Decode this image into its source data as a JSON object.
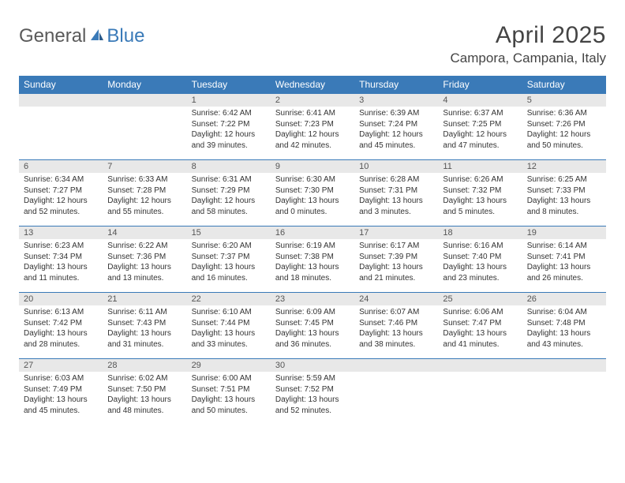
{
  "brand": {
    "part1": "General",
    "part2": "Blue"
  },
  "title": "April 2025",
  "location": "Campora, Campania, Italy",
  "colors": {
    "header_bg": "#3a7ab8",
    "header_text": "#ffffff",
    "daynum_bg": "#e8e8e8",
    "border": "#3a7ab8",
    "body_text": "#333333"
  },
  "weekdays": [
    "Sunday",
    "Monday",
    "Tuesday",
    "Wednesday",
    "Thursday",
    "Friday",
    "Saturday"
  ],
  "weeks": [
    [
      null,
      null,
      {
        "n": "1",
        "sunrise": "6:42 AM",
        "sunset": "7:22 PM",
        "daylight": "12 hours and 39 minutes."
      },
      {
        "n": "2",
        "sunrise": "6:41 AM",
        "sunset": "7:23 PM",
        "daylight": "12 hours and 42 minutes."
      },
      {
        "n": "3",
        "sunrise": "6:39 AM",
        "sunset": "7:24 PM",
        "daylight": "12 hours and 45 minutes."
      },
      {
        "n": "4",
        "sunrise": "6:37 AM",
        "sunset": "7:25 PM",
        "daylight": "12 hours and 47 minutes."
      },
      {
        "n": "5",
        "sunrise": "6:36 AM",
        "sunset": "7:26 PM",
        "daylight": "12 hours and 50 minutes."
      }
    ],
    [
      {
        "n": "6",
        "sunrise": "6:34 AM",
        "sunset": "7:27 PM",
        "daylight": "12 hours and 52 minutes."
      },
      {
        "n": "7",
        "sunrise": "6:33 AM",
        "sunset": "7:28 PM",
        "daylight": "12 hours and 55 minutes."
      },
      {
        "n": "8",
        "sunrise": "6:31 AM",
        "sunset": "7:29 PM",
        "daylight": "12 hours and 58 minutes."
      },
      {
        "n": "9",
        "sunrise": "6:30 AM",
        "sunset": "7:30 PM",
        "daylight": "13 hours and 0 minutes."
      },
      {
        "n": "10",
        "sunrise": "6:28 AM",
        "sunset": "7:31 PM",
        "daylight": "13 hours and 3 minutes."
      },
      {
        "n": "11",
        "sunrise": "6:26 AM",
        "sunset": "7:32 PM",
        "daylight": "13 hours and 5 minutes."
      },
      {
        "n": "12",
        "sunrise": "6:25 AM",
        "sunset": "7:33 PM",
        "daylight": "13 hours and 8 minutes."
      }
    ],
    [
      {
        "n": "13",
        "sunrise": "6:23 AM",
        "sunset": "7:34 PM",
        "daylight": "13 hours and 11 minutes."
      },
      {
        "n": "14",
        "sunrise": "6:22 AM",
        "sunset": "7:36 PM",
        "daylight": "13 hours and 13 minutes."
      },
      {
        "n": "15",
        "sunrise": "6:20 AM",
        "sunset": "7:37 PM",
        "daylight": "13 hours and 16 minutes."
      },
      {
        "n": "16",
        "sunrise": "6:19 AM",
        "sunset": "7:38 PM",
        "daylight": "13 hours and 18 minutes."
      },
      {
        "n": "17",
        "sunrise": "6:17 AM",
        "sunset": "7:39 PM",
        "daylight": "13 hours and 21 minutes."
      },
      {
        "n": "18",
        "sunrise": "6:16 AM",
        "sunset": "7:40 PM",
        "daylight": "13 hours and 23 minutes."
      },
      {
        "n": "19",
        "sunrise": "6:14 AM",
        "sunset": "7:41 PM",
        "daylight": "13 hours and 26 minutes."
      }
    ],
    [
      {
        "n": "20",
        "sunrise": "6:13 AM",
        "sunset": "7:42 PM",
        "daylight": "13 hours and 28 minutes."
      },
      {
        "n": "21",
        "sunrise": "6:11 AM",
        "sunset": "7:43 PM",
        "daylight": "13 hours and 31 minutes."
      },
      {
        "n": "22",
        "sunrise": "6:10 AM",
        "sunset": "7:44 PM",
        "daylight": "13 hours and 33 minutes."
      },
      {
        "n": "23",
        "sunrise": "6:09 AM",
        "sunset": "7:45 PM",
        "daylight": "13 hours and 36 minutes."
      },
      {
        "n": "24",
        "sunrise": "6:07 AM",
        "sunset": "7:46 PM",
        "daylight": "13 hours and 38 minutes."
      },
      {
        "n": "25",
        "sunrise": "6:06 AM",
        "sunset": "7:47 PM",
        "daylight": "13 hours and 41 minutes."
      },
      {
        "n": "26",
        "sunrise": "6:04 AM",
        "sunset": "7:48 PM",
        "daylight": "13 hours and 43 minutes."
      }
    ],
    [
      {
        "n": "27",
        "sunrise": "6:03 AM",
        "sunset": "7:49 PM",
        "daylight": "13 hours and 45 minutes."
      },
      {
        "n": "28",
        "sunrise": "6:02 AM",
        "sunset": "7:50 PM",
        "daylight": "13 hours and 48 minutes."
      },
      {
        "n": "29",
        "sunrise": "6:00 AM",
        "sunset": "7:51 PM",
        "daylight": "13 hours and 50 minutes."
      },
      {
        "n": "30",
        "sunrise": "5:59 AM",
        "sunset": "7:52 PM",
        "daylight": "13 hours and 52 minutes."
      },
      null,
      null,
      null
    ]
  ],
  "labels": {
    "sunrise": "Sunrise:",
    "sunset": "Sunset:",
    "daylight": "Daylight:"
  }
}
